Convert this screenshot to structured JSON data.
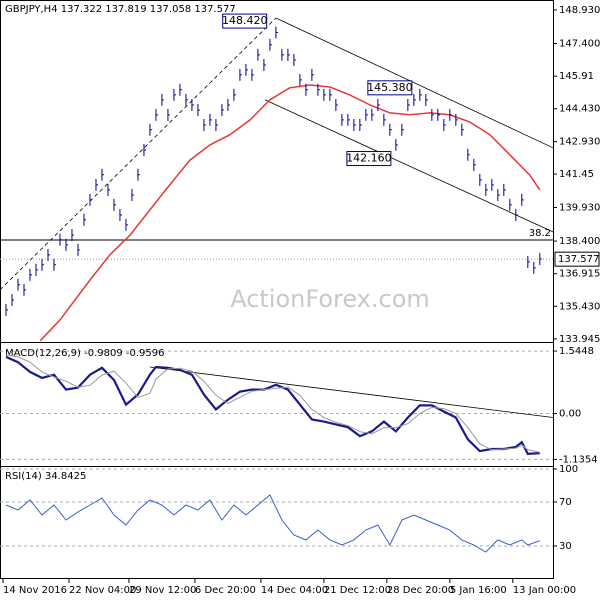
{
  "chart_data": [
    {
      "type": "price",
      "title": "GBPJPY,H4 137.322 137.819 137.058 137.577",
      "watermark": "ActionForex.com",
      "xlim": [
        0,
        92.2
      ],
      "ylim": [
        133.85,
        149.38
      ],
      "yticks": [
        {
          "value": 148.93,
          "label": "148.930"
        },
        {
          "value": 147.4,
          "label": "147.400"
        },
        145.91,
        {
          "value": 144.43,
          "label": "144.430"
        },
        {
          "value": 142.93,
          "label": "142.930"
        },
        141.45,
        {
          "value": 139.93,
          "label": "139.930"
        },
        {
          "value": 138.4,
          "label": "138.400"
        },
        136.915,
        {
          "value": 135.43,
          "label": "135.430"
        },
        133.945
      ],
      "color": "#00008b",
      "x": [
        1,
        2,
        3,
        4,
        5,
        6,
        7,
        8,
        9,
        10,
        11,
        12,
        13,
        14,
        15,
        16,
        17,
        18,
        19,
        20,
        21,
        22,
        23,
        24,
        25,
        26,
        27,
        28,
        29,
        30,
        31,
        32,
        33,
        34,
        35,
        36,
        37,
        38,
        39,
        40,
        41,
        42,
        43,
        44,
        45,
        46,
        47,
        48,
        49,
        50,
        51,
        52,
        53,
        54,
        55,
        56,
        57,
        58,
        59,
        60,
        61,
        62,
        63,
        64,
        65,
        66,
        67,
        68,
        69,
        70,
        71,
        72,
        73,
        74,
        75,
        76,
        77,
        78,
        79,
        80,
        81,
        82,
        83,
        84,
        85,
        86,
        87,
        88,
        89,
        90
      ],
      "values": [
        135.27,
        135.72,
        136.41,
        136.18,
        136.86,
        137.09,
        137.32,
        137.77,
        137.32,
        138.46,
        138.23,
        138.68,
        138.0,
        139.37,
        140.28,
        140.96,
        141.42,
        140.73,
        140.05,
        139.59,
        139.14,
        140.5,
        141.42,
        142.55,
        143.47,
        144.15,
        144.83,
        144.15,
        145.06,
        145.29,
        144.83,
        144.6,
        144.37,
        143.69,
        143.92,
        143.69,
        144.37,
        144.6,
        145.06,
        145.97,
        146.2,
        145.97,
        146.88,
        146.42,
        147.34,
        147.9,
        146.88,
        146.88,
        146.65,
        145.74,
        145.29,
        145.97,
        145.29,
        145.06,
        145.06,
        144.6,
        143.92,
        143.92,
        143.69,
        143.69,
        144.15,
        144.15,
        144.6,
        143.92,
        143.47,
        142.78,
        143.47,
        144.6,
        144.83,
        145.06,
        144.83,
        144.15,
        144.15,
        143.69,
        144.15,
        143.92,
        143.47,
        142.33,
        141.87,
        141.19,
        140.73,
        140.96,
        140.5,
        140.73,
        140.05,
        139.59,
        140.28,
        137.45,
        137.18,
        137.58
      ],
      "ma": {
        "color": "#e53935",
        "x": [
          6.7,
          10,
          15,
          18.3,
          21.7,
          25,
          28.3,
          31.7,
          35,
          38.3,
          41.7,
          45,
          48.3,
          51.7,
          55,
          58.3,
          61.7,
          65,
          68.3,
          71.7,
          75,
          78.3,
          81.7,
          85,
          88.3,
          90
        ],
        "values": [
          133.86,
          134.81,
          136.63,
          137.77,
          138.68,
          139.82,
          140.96,
          142.1,
          142.78,
          143.24,
          143.92,
          144.83,
          145.38,
          145.51,
          145.42,
          145.06,
          144.6,
          144.24,
          144.15,
          144.24,
          144.15,
          143.83,
          143.24,
          142.33,
          141.42,
          140.73
        ]
      },
      "trendlines": [
        {
          "x": [
            46,
            92.2
          ],
          "y": [
            148.56,
            142.65
          ],
          "dashed": false
        },
        {
          "x": [
            44.2,
            92.2
          ],
          "y": [
            144.83,
            138.82
          ],
          "dashed": false
        },
        {
          "x": [
            0,
            46
          ],
          "y": [
            136.18,
            148.56
          ],
          "dashed": true
        }
      ],
      "hlines": [
        {
          "value": 138.45,
          "label": "38.2"
        }
      ],
      "last_price": {
        "value": 137.577,
        "label": "137.577"
      },
      "annotations": [
        {
          "x": 40.8,
          "value": 148.42,
          "label": "148.420"
        },
        {
          "x": 65,
          "value": 145.38,
          "label": "145.380"
        },
        {
          "x": 61.5,
          "value": 142.16,
          "label": "142.160"
        }
      ]
    },
    {
      "type": "line",
      "title": "MACD(12,26,9) -0.9809 -0.9596",
      "xlim": [
        0,
        92.2
      ],
      "ylim": [
        -1.3,
        1.72
      ],
      "yticks": [
        1.5448,
        {
          "value": 0,
          "label": "0.00"
        },
        -1.1354
      ],
      "series": [
        {
          "color": "#1a1a8c",
          "width": 2.2,
          "x": [
            1,
            3,
            5,
            7,
            9,
            11,
            13,
            15,
            17,
            19,
            21,
            23,
            25,
            26,
            28,
            30,
            32,
            34,
            36,
            38,
            40,
            42,
            44,
            46,
            48,
            50,
            52,
            54,
            56,
            58,
            60,
            62,
            64,
            66,
            68,
            70,
            72,
            74,
            76,
            78,
            80,
            82,
            84,
            86,
            87,
            88,
            90
          ],
          "values": [
            1.4,
            1.27,
            1.03,
            0.88,
            0.96,
            0.59,
            0.64,
            0.96,
            1.13,
            0.83,
            0.22,
            0.47,
            0.96,
            1.15,
            1.13,
            1.08,
            0.96,
            0.47,
            0.1,
            0.34,
            0.54,
            0.59,
            0.59,
            0.71,
            0.59,
            0.22,
            -0.15,
            -0.2,
            -0.27,
            -0.34,
            -0.56,
            -0.44,
            -0.2,
            -0.44,
            -0.1,
            0.2,
            0.2,
            0.05,
            -0.1,
            -0.64,
            -0.93,
            -0.88,
            -0.88,
            -0.83,
            -0.71,
            -1.0,
            -0.9809
          ]
        },
        {
          "color": "#9a9a9a",
          "width": 1,
          "x": [
            1,
            3,
            5,
            7,
            9,
            11,
            13,
            15,
            17,
            19,
            21,
            23,
            25,
            26,
            28,
            30,
            32,
            34,
            36,
            38,
            40,
            42,
            44,
            46,
            48,
            50,
            52,
            54,
            56,
            58,
            60,
            62,
            64,
            66,
            68,
            70,
            72,
            74,
            76,
            78,
            80,
            82,
            84,
            86,
            87,
            88,
            90
          ],
          "values": [
            1.45,
            1.4,
            1.27,
            1.03,
            0.9,
            0.8,
            0.65,
            0.7,
            0.95,
            1.05,
            0.75,
            0.4,
            0.5,
            0.85,
            1.1,
            1.12,
            1.05,
            0.8,
            0.45,
            0.25,
            0.4,
            0.55,
            0.59,
            0.62,
            0.65,
            0.45,
            0.1,
            -0.1,
            -0.22,
            -0.3,
            -0.45,
            -0.5,
            -0.35,
            -0.35,
            -0.25,
            0.0,
            0.15,
            0.12,
            0.0,
            -0.35,
            -0.75,
            -0.9,
            -0.88,
            -0.86,
            -0.78,
            -0.9,
            -0.9596
          ]
        }
      ],
      "trendlines": [
        {
          "x": [
            25,
            92.2
          ],
          "y": [
            1.15,
            -0.1
          ],
          "dashed": false
        }
      ]
    },
    {
      "type": "line",
      "title": "RSI(14) 34.8425",
      "xlim": [
        0,
        92.2
      ],
      "ylim": [
        0,
        101.8
      ],
      "yticks": [
        100,
        70,
        30
      ],
      "series": [
        {
          "color": "#3a5fcd",
          "width": 1,
          "x": [
            1,
            3,
            5,
            7,
            9,
            11,
            13,
            15,
            17,
            19,
            21,
            23,
            25,
            27,
            29,
            31,
            33,
            35,
            37,
            39,
            41,
            43,
            45,
            47,
            49,
            51,
            53,
            55,
            57,
            59,
            61,
            63,
            65,
            67,
            69,
            71,
            73,
            75,
            77,
            79,
            81,
            83,
            85,
            87,
            88,
            90
          ],
          "values": [
            67.3,
            62.7,
            71.8,
            58.2,
            67.3,
            53.6,
            60.9,
            67.3,
            73.6,
            58.2,
            49.1,
            62.7,
            71.8,
            67.3,
            58.2,
            67.3,
            62.7,
            71.8,
            53.6,
            67.3,
            58.2,
            67.3,
            76.4,
            53.6,
            40.0,
            35.5,
            44.5,
            35.5,
            30.9,
            35.5,
            44.5,
            49.1,
            30.9,
            53.6,
            58.2,
            53.6,
            49.1,
            44.5,
            35.5,
            30.9,
            24.5,
            35.5,
            30.9,
            35.5,
            30.9,
            34.8425
          ]
        }
      ],
      "xticks": [
        {
          "value": 0.5,
          "label": "14 Nov 2016"
        },
        {
          "value": 11.5,
          "label": "22 Nov 04:00"
        },
        {
          "value": 21.5,
          "label": "29 Nov 12:00"
        },
        {
          "value": 32.5,
          "label": "6 Dec 20:00"
        },
        {
          "value": 43.5,
          "label": "14 Dec 04:00"
        },
        {
          "value": 54,
          "label": "21 Dec 12:00"
        },
        {
          "value": 64.5,
          "label": "28 Dec 20:00"
        },
        {
          "value": 75,
          "label": "5 Jan 16:00"
        },
        {
          "value": 85.5,
          "label": "13 Jan 00:00"
        }
      ]
    }
  ]
}
